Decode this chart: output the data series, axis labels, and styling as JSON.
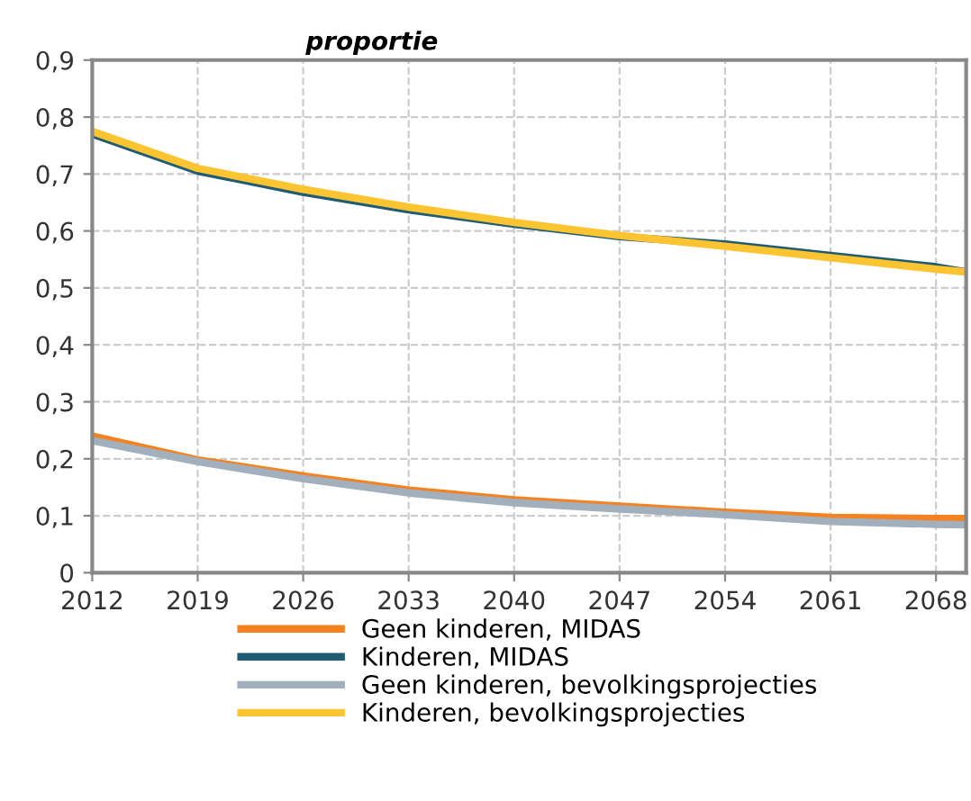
{
  "chart_data": {
    "type": "line",
    "ylabel": "proportie",
    "x": [
      2012,
      2019,
      2026,
      2033,
      2040,
      2047,
      2054,
      2061,
      2068,
      2070
    ],
    "series": [
      {
        "name": "Geen kinderen, MIDAS",
        "color": "#f58220",
        "values": [
          0.24,
          0.198,
          0.17,
          0.145,
          0.128,
          0.117,
          0.106,
          0.097,
          0.095,
          0.095
        ]
      },
      {
        "name": "Kinderen, MIDAS",
        "color": "#1f5c73",
        "values": [
          0.77,
          0.705,
          0.668,
          0.637,
          0.612,
          0.59,
          0.577,
          0.557,
          0.537,
          0.528
        ]
      },
      {
        "name": "Geen kinderen, bevolkingsprojecties",
        "color": "#a2b0bd",
        "values": [
          0.232,
          0.195,
          0.165,
          0.14,
          0.123,
          0.112,
          0.102,
          0.09,
          0.085,
          0.084
        ]
      },
      {
        "name": "Kinderen, bevolkingsprojecties",
        "color": "#fcc431",
        "values": [
          0.775,
          0.71,
          0.673,
          0.642,
          0.615,
          0.592,
          0.573,
          0.553,
          0.533,
          0.528
        ]
      }
    ],
    "xlim": [
      2012,
      2070
    ],
    "xticks": [
      2012,
      2019,
      2026,
      2033,
      2040,
      2047,
      2054,
      2061,
      2068
    ],
    "ylim": [
      0,
      0.9
    ],
    "yticks": [
      {
        "value": 0,
        "label": "0"
      },
      {
        "value": 0.1,
        "label": "0,1"
      },
      {
        "value": 0.2,
        "label": "0,2"
      },
      {
        "value": 0.3,
        "label": "0,3"
      },
      {
        "value": 0.4,
        "label": "0,4"
      },
      {
        "value": 0.5,
        "label": "0,5"
      },
      {
        "value": 0.6,
        "label": "0,6"
      },
      {
        "value": 0.7,
        "label": "0,7"
      },
      {
        "value": 0.8,
        "label": "0,8"
      },
      {
        "value": 0.9,
        "label": "0,9"
      }
    ],
    "grid": true,
    "legend": "bottom",
    "line_style": "solid",
    "marker": "none"
  }
}
